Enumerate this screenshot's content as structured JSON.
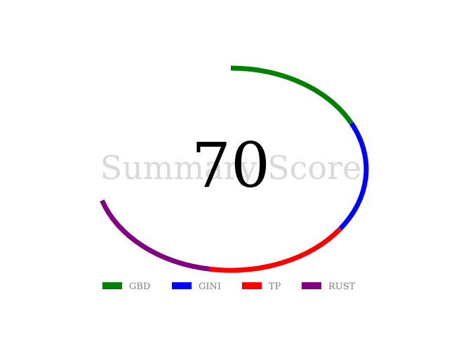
{
  "chart_data": {
    "type": "gauge",
    "title": "Summary Score",
    "score": "70",
    "score_value": 70,
    "series": [
      {
        "name": "GBD",
        "value": 17.5,
        "color": "#008000"
      },
      {
        "name": "GINI",
        "value": 17.5,
        "color": "#0000ff"
      },
      {
        "name": "TP",
        "value": 17.5,
        "color": "#ff0000"
      },
      {
        "name": "RUST",
        "value": 17.5,
        "color": "#800080"
      }
    ],
    "legend_placement": "bottom",
    "total": 100
  }
}
